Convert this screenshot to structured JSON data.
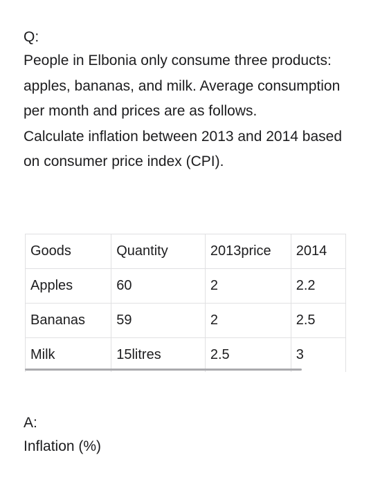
{
  "question": {
    "label": "Q:",
    "paragraph1": "People in Elbonia only consume three products: apples, bananas, and milk. Average consumption per month and prices are as follows.",
    "paragraph2": "Calculate inflation between 2013 and 2014 based on consumer price index (CPI)."
  },
  "table": {
    "headers": [
      "Goods",
      "Quantity",
      "2013price",
      "2014"
    ],
    "rows": [
      [
        "Apples",
        "60",
        "2",
        "2.2"
      ],
      [
        "Bananas",
        "59",
        "2",
        "2.5"
      ],
      [
        "Milk",
        "15litres",
        "2.5",
        "3"
      ]
    ]
  },
  "answer": {
    "label": "A:",
    "text": "Inflation (%)"
  }
}
